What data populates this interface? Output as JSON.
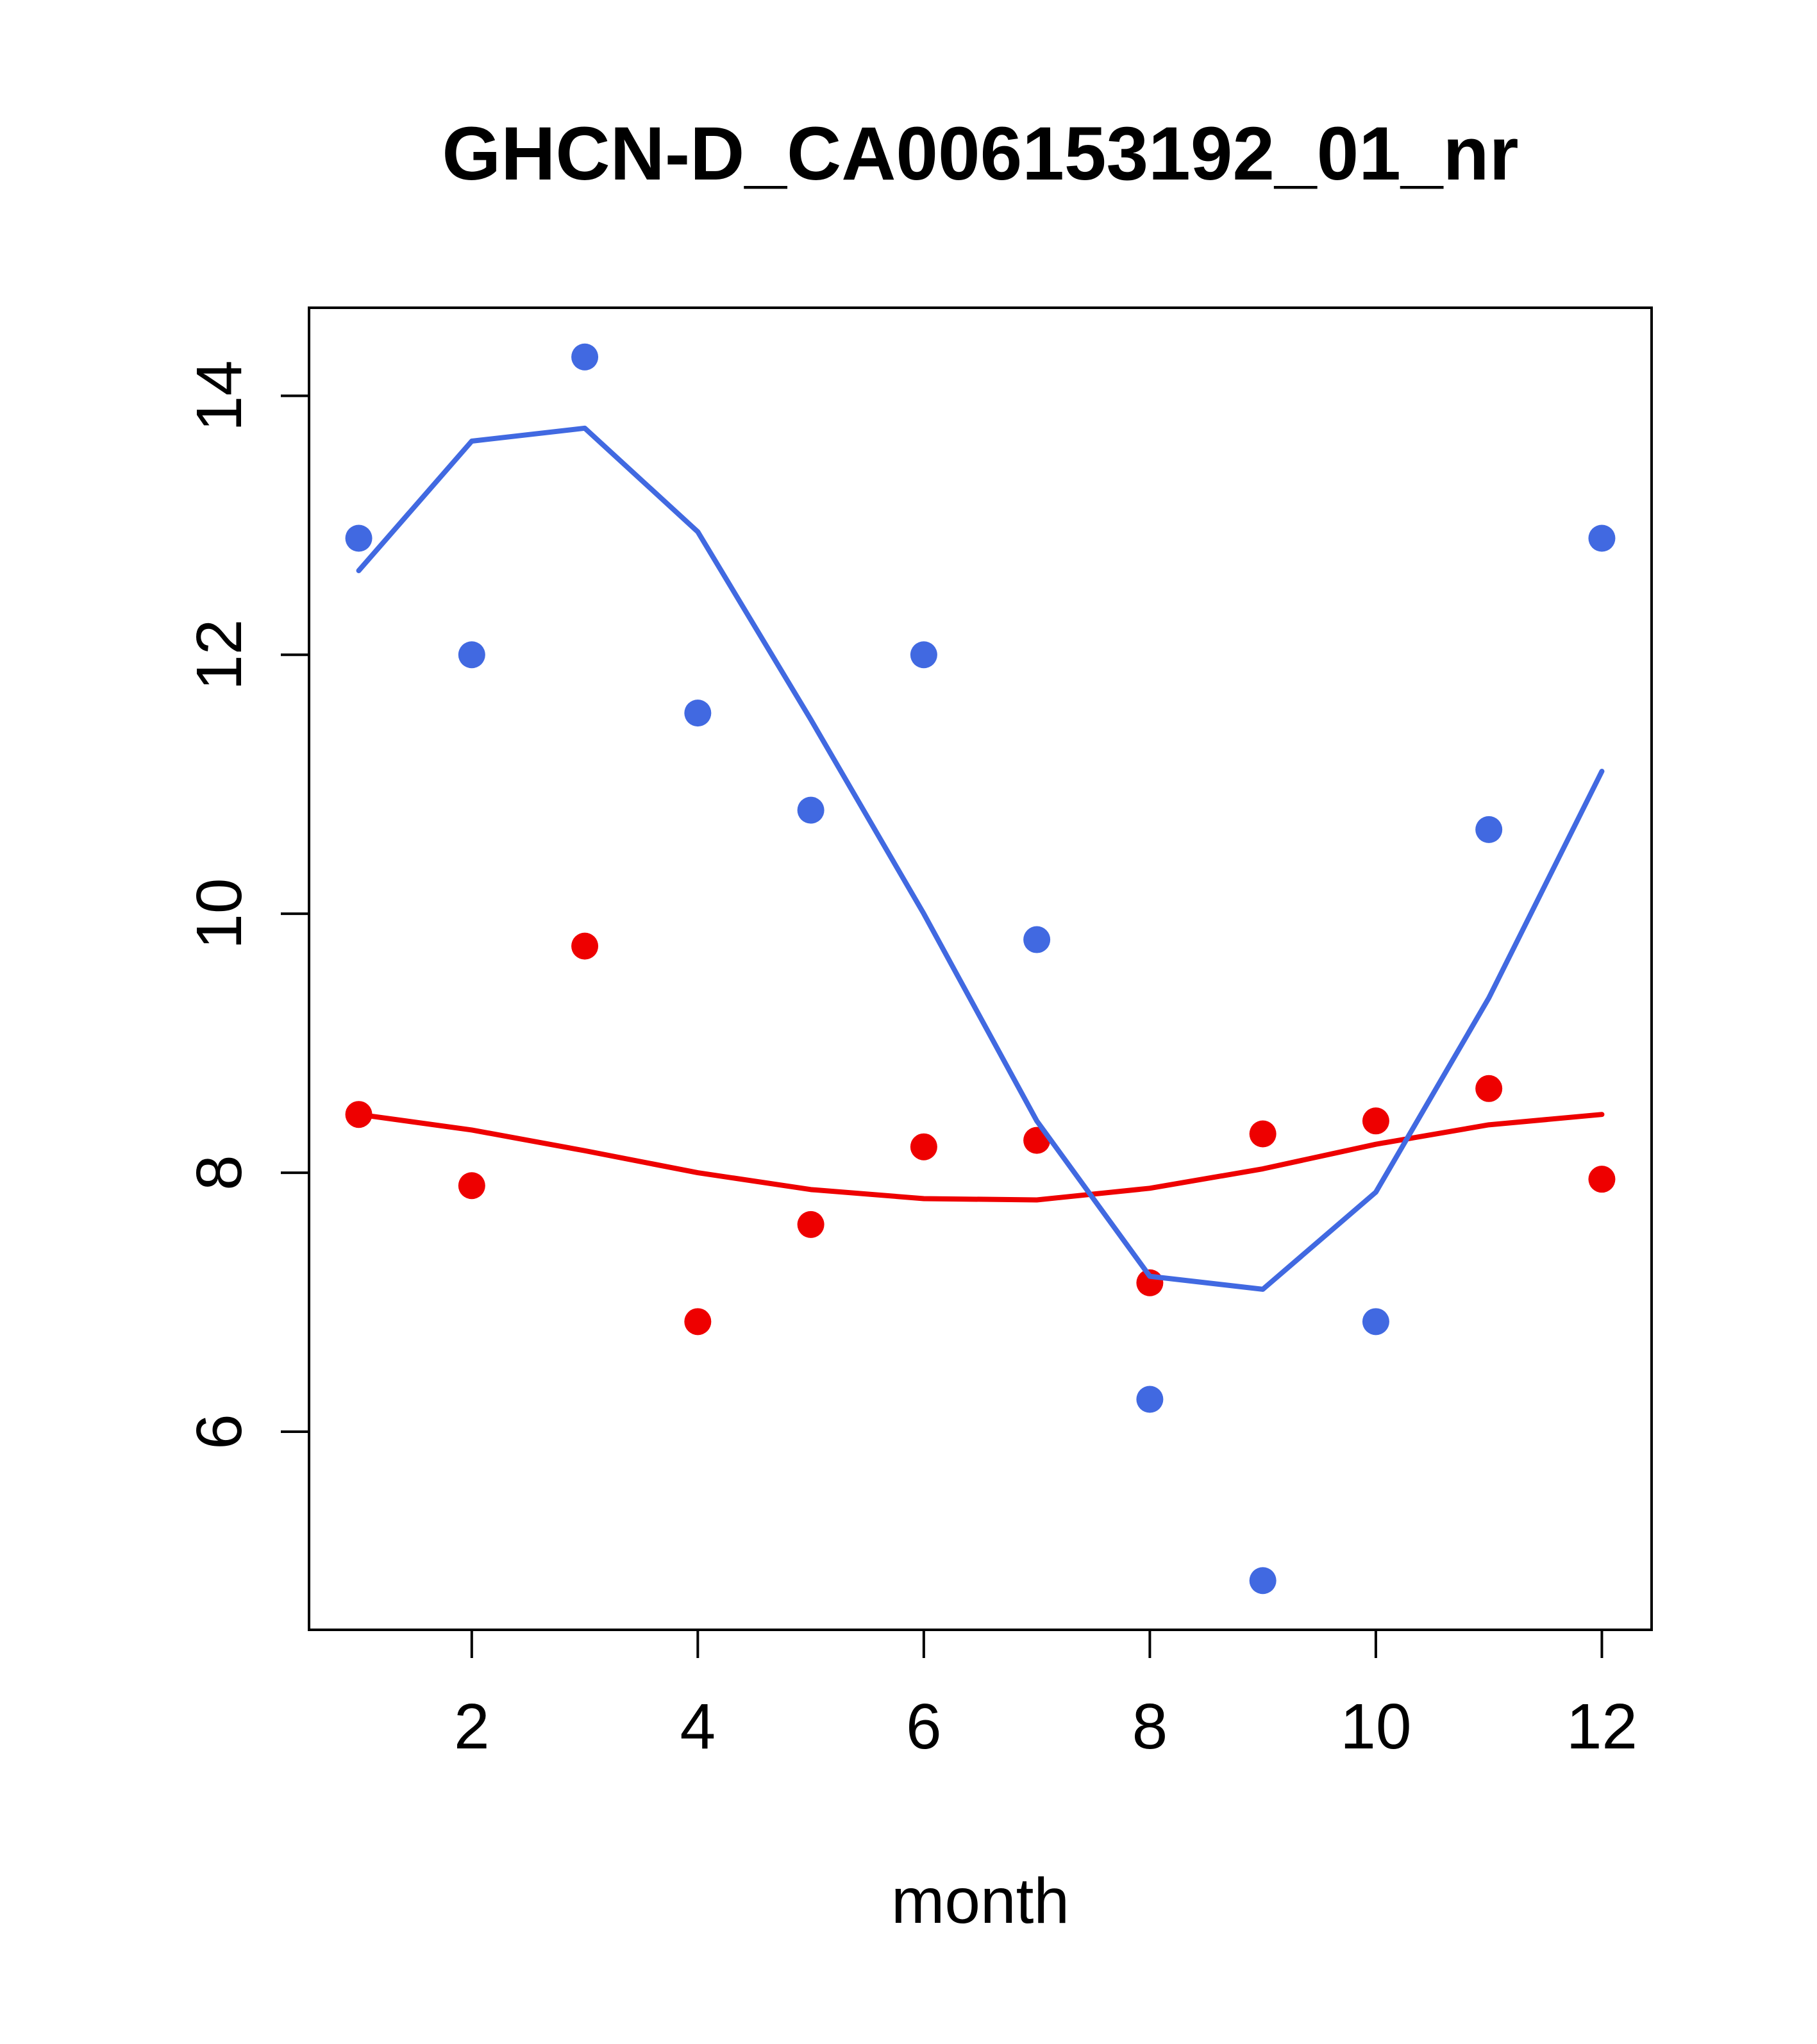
{
  "figure": {
    "background": "#ffffff"
  },
  "chart_data": {
    "type": "scatter",
    "title": "GHCN-D_CA006153192_01_nr",
    "xlabel": "month",
    "ylabel": "",
    "grid": false,
    "legend": "none",
    "xlim": [
      0.56,
      12.44
    ],
    "ylim": [
      4.47,
      14.68
    ],
    "x_ticks": [
      2,
      4,
      6,
      8,
      10,
      12
    ],
    "y_ticks": [
      6,
      8,
      10,
      12,
      14
    ],
    "x": [
      1,
      2,
      3,
      4,
      5,
      6,
      7,
      8,
      9,
      10,
      11,
      12
    ],
    "colors": {
      "blue": "#4169E1",
      "red": "#EE0000",
      "axis": "#000000"
    },
    "series": [
      {
        "name": "red-smooth-line",
        "style": "line",
        "color": "#EE0000",
        "values": [
          8.45,
          8.33,
          8.17,
          8.0,
          7.87,
          7.8,
          7.79,
          7.88,
          8.03,
          8.22,
          8.37,
          8.45
        ]
      },
      {
        "name": "red-points",
        "style": "points",
        "color": "#EE0000",
        "values": [
          8.45,
          7.9,
          9.75,
          6.85,
          7.6,
          8.2,
          8.25,
          7.15,
          8.3,
          8.4,
          8.65,
          7.95
        ]
      },
      {
        "name": "blue-smooth-line",
        "style": "line",
        "color": "#4169E1",
        "values": [
          12.65,
          13.65,
          13.75,
          12.95,
          11.5,
          10.0,
          8.4,
          7.2,
          7.1,
          7.85,
          9.35,
          11.1
        ]
      },
      {
        "name": "blue-points",
        "style": "points",
        "color": "#4169E1",
        "values": [
          12.9,
          12.0,
          14.3,
          11.55,
          10.8,
          12.0,
          9.8,
          6.25,
          4.85,
          6.85,
          10.65,
          12.9
        ]
      }
    ]
  }
}
